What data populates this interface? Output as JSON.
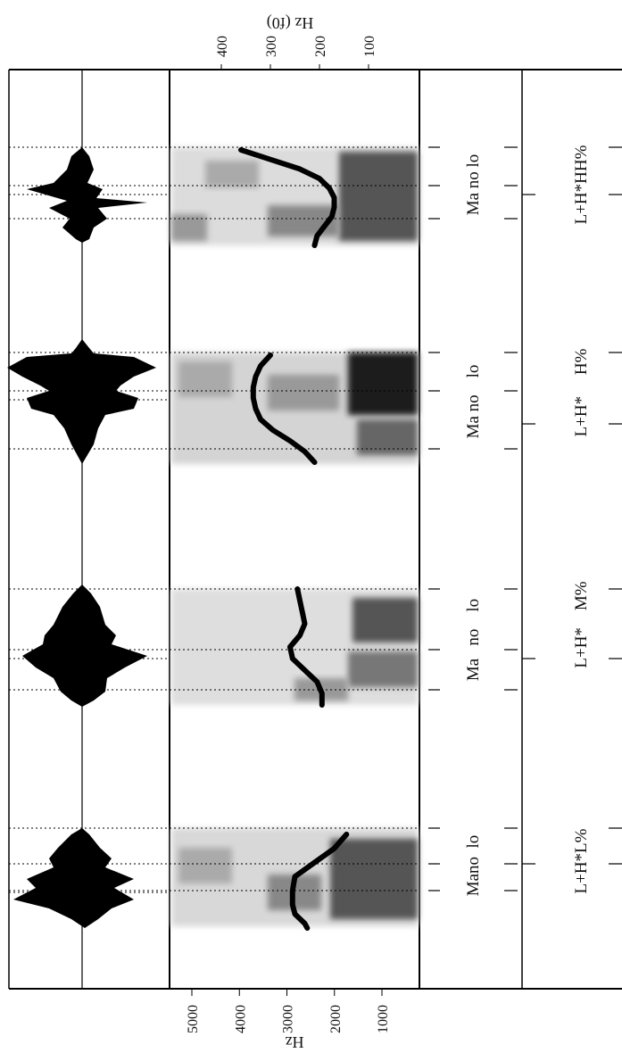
{
  "figure": {
    "left_axis": {
      "label": "Hz (f0)",
      "ticks": [
        400,
        300,
        200,
        100
      ]
    },
    "bottom_axis": {
      "label": "Hz",
      "ticks": [
        5000,
        4000,
        3000,
        2000,
        1000
      ]
    },
    "panels": [
      {
        "words": "Ma no lo",
        "tones": "L+H*HH%",
        "f0_contour": [
          [
            0.0,
            360
          ],
          [
            0.1,
            300
          ],
          [
            0.2,
            240
          ],
          [
            0.3,
            200
          ],
          [
            0.4,
            180
          ],
          [
            0.5,
            170
          ],
          [
            0.6,
            170
          ],
          [
            0.7,
            175
          ],
          [
            0.8,
            190
          ],
          [
            0.9,
            205
          ],
          [
            1.0,
            210
          ]
        ]
      },
      {
        "words": "Ma no    lo",
        "tones": "L+H*     H%",
        "f0_contour": [
          [
            0.0,
            300
          ],
          [
            0.1,
            320
          ],
          [
            0.2,
            330
          ],
          [
            0.3,
            335
          ],
          [
            0.4,
            335
          ],
          [
            0.5,
            330
          ],
          [
            0.6,
            320
          ],
          [
            0.7,
            295
          ],
          [
            0.8,
            260
          ],
          [
            0.9,
            230
          ],
          [
            1.0,
            210
          ]
        ]
      },
      {
        "words": "Ma   no    lo",
        "tones": "L+H*    M%",
        "f0_contour": [
          [
            0.0,
            245
          ],
          [
            0.1,
            240
          ],
          [
            0.2,
            235
          ],
          [
            0.3,
            230
          ],
          [
            0.4,
            240
          ],
          [
            0.5,
            260
          ],
          [
            0.6,
            255
          ],
          [
            0.7,
            230
          ],
          [
            0.8,
            205
          ],
          [
            0.9,
            195
          ],
          [
            1.0,
            195
          ]
        ]
      },
      {
        "words": "Mano  lo",
        "tones": "L+H*L%",
        "f0_contour": [
          [
            0.0,
            145
          ],
          [
            0.15,
            170
          ],
          [
            0.3,
            210
          ],
          [
            0.45,
            250
          ],
          [
            0.6,
            255
          ],
          [
            0.75,
            255
          ],
          [
            0.85,
            250
          ],
          [
            0.95,
            230
          ],
          [
            1.0,
            225
          ]
        ]
      }
    ]
  }
}
